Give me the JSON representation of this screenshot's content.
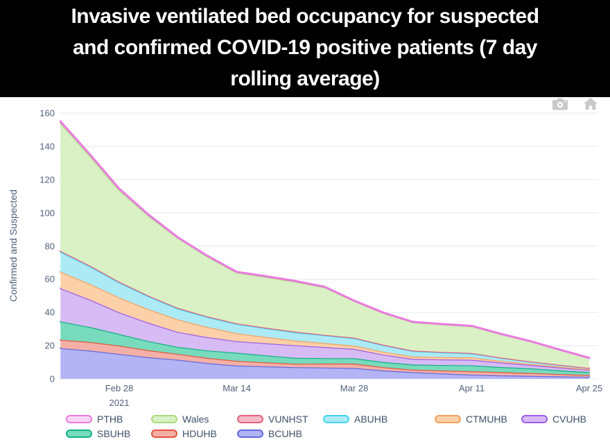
{
  "title": {
    "lines": [
      "Invasive ventilated bed occupancy for suspected",
      "and confirmed COVID-19 positive patients (7 day",
      "rolling average)"
    ]
  },
  "modebar": {
    "camera_icon": "download-plot-as-png",
    "home_icon": "reset-axes"
  },
  "chart_data": {
    "type": "area",
    "stacked": true,
    "title": "Invasive ventilated bed occupancy for suspected and confirmed COVID-19 positive patients (7 day rolling average)",
    "xlabel": "",
    "ylabel": "Confirmed and Suspected",
    "ylim": [
      0,
      160
    ],
    "yticks": [
      0,
      20,
      40,
      60,
      80,
      100,
      120,
      140,
      160
    ],
    "grid": true,
    "legend_position": "bottom",
    "x_days": [
      0,
      3.5,
      7,
      10.5,
      14,
      17.5,
      21,
      24.5,
      28,
      31.5,
      35,
      38.5,
      42,
      45.5,
      49,
      52.5,
      56,
      59.5,
      63
    ],
    "xticks": [
      {
        "label": "Feb 28",
        "sublabel": "2021",
        "day": 7
      },
      {
        "label": "Mar 14",
        "sublabel": "",
        "day": 21
      },
      {
        "label": "Mar 28",
        "sublabel": "",
        "day": 35
      },
      {
        "label": "Apr 11",
        "sublabel": "",
        "day": 49
      },
      {
        "label": "Apr 25",
        "sublabel": "",
        "day": 63
      }
    ],
    "series": [
      {
        "name": "BCUHB",
        "line": "#6468e0",
        "fill": "#b2b4f4",
        "values": [
          18.5,
          17,
          15,
          13,
          11.5,
          9.5,
          8,
          7.5,
          7,
          6.8,
          6.5,
          5,
          4,
          3.2,
          2.5,
          2.1,
          1.8,
          1.5,
          1.2
        ]
      },
      {
        "name": "HDUHB",
        "line": "#e4543f",
        "fill": "#f4b0a6",
        "values": [
          5,
          5.2,
          5,
          4.2,
          3.5,
          3.1,
          2.8,
          2.4,
          2.1,
          2.4,
          2.7,
          2,
          1.5,
          1.8,
          2.1,
          1.9,
          1.7,
          1.4,
          1.1
        ]
      },
      {
        "name": "SBUHB",
        "line": "#13af85",
        "fill": "#77dbbc",
        "values": [
          11,
          9,
          7,
          5.5,
          4.2,
          4.5,
          4.9,
          4.2,
          3.5,
          3.3,
          3.2,
          3.1,
          3.1,
          3.3,
          3.5,
          3.1,
          2.8,
          2.2,
          1.7
        ]
      },
      {
        "name": "CVUHB",
        "line": "#9b5de8",
        "fill": "#d7bbf4",
        "values": [
          20,
          16.5,
          13,
          11,
          9,
          8,
          7,
          7.3,
          7.6,
          6.6,
          5.6,
          4.5,
          3.4,
          3.4,
          3.4,
          2.7,
          2,
          1.7,
          1.4
        ]
      },
      {
        "name": "CTMUHB",
        "line": "#f5a05c",
        "fill": "#fcd0a8",
        "values": [
          10,
          9.5,
          9,
          8.2,
          7.5,
          6.1,
          4.8,
          3.8,
          2.8,
          2.4,
          2,
          1.7,
          1.4,
          1.4,
          1.4,
          1,
          0.7,
          0.5,
          0.3
        ]
      },
      {
        "name": "ABUHB",
        "line": "#45d5ef",
        "fill": "#aceaf6",
        "values": [
          12,
          10.5,
          9,
          7.7,
          6.5,
          6,
          5.5,
          5.2,
          5,
          4.7,
          4.5,
          3.9,
          3.3,
          2.8,
          2.4,
          1.8,
          1.3,
          1,
          0.7
        ]
      },
      {
        "name": "VUNHST",
        "line": "#e4607f",
        "fill": "#f6b9c6",
        "values": [
          0.5,
          0.5,
          0.5,
          0.5,
          0.5,
          0.4,
          0.4,
          0.4,
          0.4,
          0.3,
          0.3,
          0.3,
          0.3,
          0.3,
          0.3,
          0.2,
          0.2,
          0.15,
          0.1
        ]
      },
      {
        "name": "Wales",
        "line": "#a9dc7e",
        "fill": "#daf0c5",
        "values": [
          77,
          66,
          55,
          48,
          42,
          36,
          30.5,
          30.5,
          30,
          28.5,
          22,
          19,
          17,
          16.5,
          16,
          14,
          12,
          9,
          6
        ]
      },
      {
        "name": "PTHB",
        "line": "#ec7ae1",
        "fill": "#fad7f5",
        "values": [
          1,
          1,
          1,
          0.7,
          0.5,
          0.5,
          0.5,
          0.5,
          0.5,
          0.4,
          0.3,
          0.3,
          0.3,
          0.3,
          0.3,
          0.25,
          0.2,
          0.15,
          0.1
        ]
      }
    ],
    "legend_order": [
      "PTHB",
      "Wales",
      "VUNHST",
      "ABUHB",
      "CTMUHB",
      "CVUHB",
      "SBUHB",
      "HDUHB",
      "BCUHB"
    ]
  }
}
